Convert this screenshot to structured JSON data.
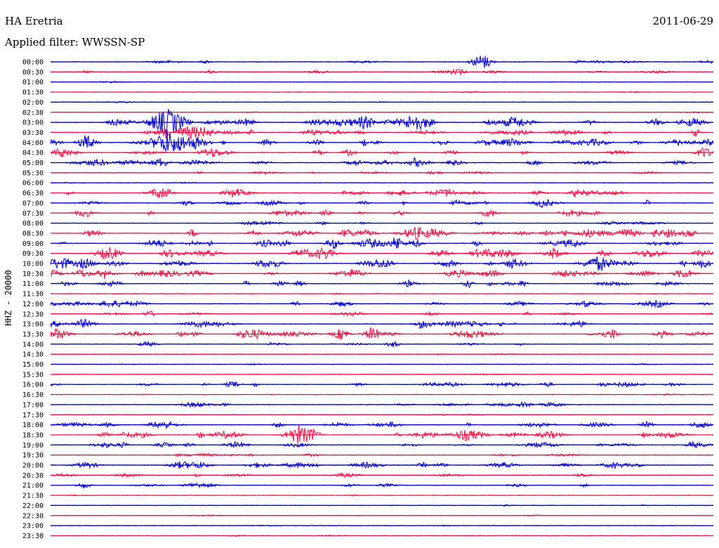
{
  "header": {
    "station": "HA Eretria",
    "date": "2011-06-29",
    "filter": "Applied filter: WWSSN-SP",
    "channel_label": "HHZ - 20000"
  },
  "colors": {
    "odd_trace": "#0000cc",
    "even_trace": "#ee1144",
    "background": "#ffffff"
  },
  "chart_data": {
    "type": "line",
    "title": "HA Eretria",
    "subtitle": "Applied filter: WWSSN-SP",
    "ylabel": "HHZ - 20000",
    "xlabel": "",
    "grid": false,
    "rows": [
      "00:00",
      "00:30",
      "01:00",
      "01:30",
      "02:00",
      "02:30",
      "03:00",
      "03:30",
      "04:00",
      "04:30",
      "05:00",
      "05:30",
      "06:00",
      "06:30",
      "07:00",
      "07:30",
      "08:00",
      "08:30",
      "09:00",
      "09:30",
      "10:00",
      "10:30",
      "11:00",
      "11:30",
      "12:00",
      "12:30",
      "13:00",
      "13:30",
      "14:00",
      "14:30",
      "15:00",
      "15:30",
      "16:00",
      "16:30",
      "17:00",
      "17:30",
      "18:00",
      "18:30",
      "19:00",
      "19:30",
      "20:00",
      "20:30",
      "21:00",
      "21:30",
      "22:00",
      "22:30",
      "23:00",
      "23:30"
    ],
    "activity_level": [
      1,
      1,
      0,
      0,
      0,
      0,
      3,
      3,
      3,
      2,
      2,
      1,
      0,
      2,
      2,
      2,
      1,
      3,
      3,
      3,
      3,
      3,
      2,
      0,
      2,
      1,
      2,
      3,
      1,
      0,
      0,
      0,
      2,
      0,
      1,
      0,
      2,
      3,
      2,
      1,
      2,
      1,
      1,
      0,
      0,
      0,
      0,
      0
    ],
    "events": [
      {
        "row": "00:00",
        "minute": 19.5,
        "amplitude": 3
      },
      {
        "row": "00:30",
        "minute": 18.5,
        "amplitude": 1
      },
      {
        "row": "03:00",
        "minute": 5.3,
        "amplitude": 7
      },
      {
        "row": "04:00",
        "minute": 5.3,
        "amplitude": 6
      },
      {
        "row": "04:30",
        "minute": 13.5,
        "amplitude": 1
      },
      {
        "row": "05:00",
        "minute": 5.0,
        "amplitude": 2
      },
      {
        "row": "06:30",
        "minute": 5.0,
        "amplitude": 2
      },
      {
        "row": "06:30",
        "minute": 18.0,
        "amplitude": 1
      },
      {
        "row": "10:00",
        "minute": 29.5,
        "amplitude": 2
      },
      {
        "row": "12:30",
        "minute": 4.5,
        "amplitude": 1
      },
      {
        "row": "13:30",
        "minute": 14.5,
        "amplitude": 2
      },
      {
        "row": "14:00",
        "minute": 15.5,
        "amplitude": 1
      },
      {
        "row": "17:00",
        "minute": 21.5,
        "amplitude": 1
      },
      {
        "row": "18:00",
        "minute": 27.0,
        "amplitude": 1
      },
      {
        "row": "21:00",
        "minute": 1.5,
        "amplitude": 1
      }
    ]
  }
}
